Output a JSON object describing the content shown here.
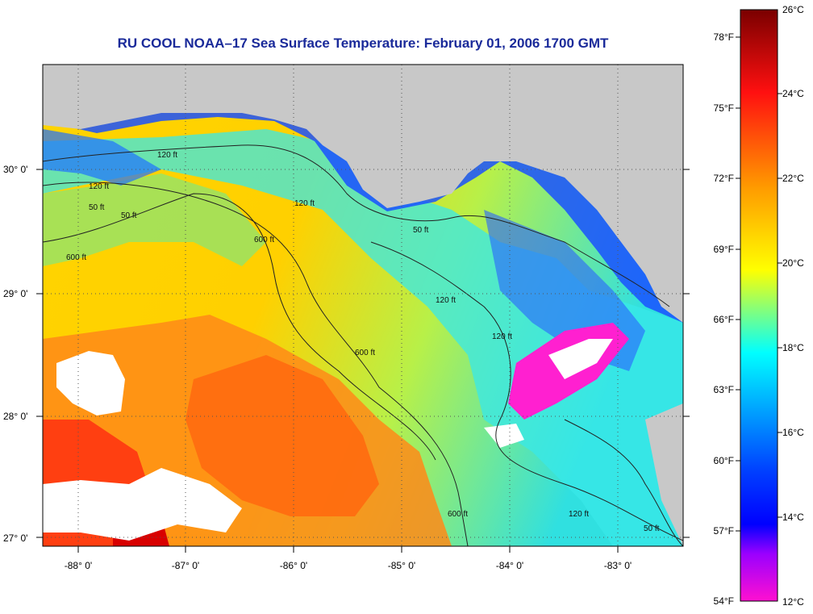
{
  "title": "RU COOL  NOAA–17  Sea Surface Temperature:  February 01, 2006 1700 GMT",
  "map": {
    "lat_labels": [
      "30° 0'",
      "29° 0'",
      "28° 0'",
      "27° 0'"
    ],
    "lon_labels": [
      "-88° 0'",
      "-87° 0'",
      "-86° 0'",
      "-85° 0'",
      "-84° 0'",
      "-83° 0'"
    ],
    "contour_labels": [
      "120 ft",
      "50 ft",
      "50 ft",
      "120 ft",
      "120 ft",
      "600 ft",
      "600 ft",
      "50 ft",
      "120 ft",
      "600 ft",
      "120 ft",
      "600 ft",
      "120 ft",
      "50 ft"
    ]
  },
  "colorbar": {
    "fahrenheit_labels": [
      "78°F",
      "75°F",
      "72°F",
      "69°F",
      "66°F",
      "63°F",
      "60°F",
      "57°F",
      "54°F"
    ],
    "celsius_labels": [
      "26°C",
      "24°C",
      "22°C",
      "20°C",
      "18°C",
      "16°C",
      "14°C",
      "12°C"
    ],
    "colors": [
      "#8b0000",
      "#ff0000",
      "#ff8c00",
      "#ffff00",
      "#00ffff",
      "#0000ff",
      "#ff00ff"
    ]
  }
}
